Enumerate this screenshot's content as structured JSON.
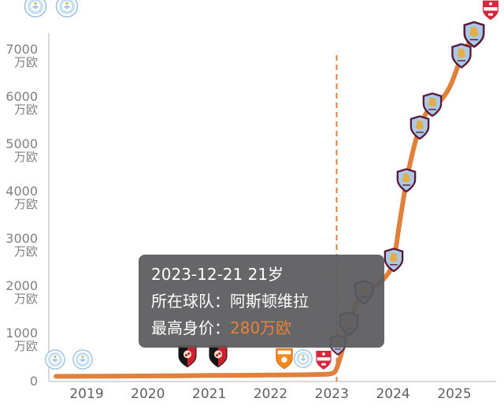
{
  "page": {
    "background": "#ffffff"
  },
  "colors": {
    "line_orange": "#e0803a",
    "dashed_orange": "#e0803a",
    "tooltip_bg": "#5a5a5c",
    "tooltip_value_orange": "#e8823c",
    "axis_gray": "#d9d9d9",
    "label_gray": "#808080"
  },
  "tooltip": {
    "date_age": "2023-12-21 21岁",
    "team_label": "所在球队：",
    "team_value": "阿斯顿维拉",
    "value_label": "最高身价：",
    "value_value": "280万欧"
  },
  "chart_data": {
    "type": "line",
    "title": "",
    "unit": "万欧",
    "x_range": [
      2018.4,
      2025.65
    ],
    "ylim": [
      0,
      7400
    ],
    "grid": false,
    "legend": false,
    "dashed_line_x": 2023.08,
    "x_axis": {
      "ticks": [
        {
          "label": "2019",
          "value": 2019
        },
        {
          "label": "2020",
          "value": 2020
        },
        {
          "label": "2021",
          "value": 2021
        },
        {
          "label": "2022",
          "value": 2022
        },
        {
          "label": "2023",
          "value": 2023
        },
        {
          "label": "2024",
          "value": 2024
        },
        {
          "label": "2025",
          "value": 2025
        }
      ]
    },
    "y_axis": {
      "ticks": [
        {
          "label": "7000",
          "unit": "万欧",
          "value": 7000
        },
        {
          "label": "6000",
          "unit": "万欧",
          "value": 6000
        },
        {
          "label": "5000",
          "unit": "万欧",
          "value": 5000
        },
        {
          "label": "4000",
          "unit": "万欧",
          "value": 4000
        },
        {
          "label": "3000",
          "unit": "万欧",
          "value": 3000
        },
        {
          "label": "2000",
          "unit": "万欧",
          "value": 2000
        },
        {
          "label": "1000",
          "unit": "万欧",
          "value": 1000
        },
        {
          "label": "0",
          "unit": "",
          "value": 0
        }
      ]
    },
    "series": [
      {
        "name": "market-value",
        "color": "#e0803a",
        "points": [
          [
            2018.5,
            110
          ],
          [
            2019.0,
            112
          ],
          [
            2019.5,
            115
          ],
          [
            2020.0,
            118
          ],
          [
            2020.5,
            122
          ],
          [
            2021.0,
            128
          ],
          [
            2021.5,
            132
          ],
          [
            2022.0,
            138
          ],
          [
            2022.4,
            142
          ],
          [
            2022.8,
            150
          ],
          [
            2023.0,
            170
          ],
          [
            2023.08,
            280
          ],
          [
            2023.18,
            700
          ],
          [
            2023.28,
            1210
          ],
          [
            2023.4,
            1620
          ],
          [
            2023.52,
            1890
          ],
          [
            2023.7,
            2000
          ],
          [
            2023.9,
            2250
          ],
          [
            2024.01,
            2560
          ],
          [
            2024.1,
            3300
          ],
          [
            2024.22,
            4250
          ],
          [
            2024.33,
            4900
          ],
          [
            2024.43,
            5360
          ],
          [
            2024.55,
            5700
          ],
          [
            2024.64,
            5850
          ],
          [
            2024.8,
            5980
          ],
          [
            2024.95,
            6300
          ],
          [
            2025.12,
            6890
          ],
          [
            2025.22,
            7120
          ],
          [
            2025.32,
            7300
          ]
        ]
      }
    ],
    "badges": [
      {
        "club": "man-city",
        "year": 2018.16,
        "value": 7930,
        "size": 30
      },
      {
        "club": "man-city",
        "year": 2018.68,
        "value": 7930,
        "size": 30
      },
      {
        "club": "middlesbrough",
        "year": 2025.59,
        "value": 7850,
        "size": 26
      },
      {
        "club": "man-city",
        "year": 2018.49,
        "value": 470,
        "size": 27
      },
      {
        "club": "man-city",
        "year": 2018.94,
        "value": 470,
        "size": 27
      },
      {
        "club": "bournemouth",
        "year": 2020.64,
        "value": 530,
        "size": 27
      },
      {
        "club": "bournemouth",
        "year": 2021.15,
        "value": 530,
        "size": 27
      },
      {
        "club": "blackpool",
        "year": 2022.23,
        "value": 480,
        "size": 25
      },
      {
        "club": "man-city",
        "year": 2022.53,
        "value": 480,
        "size": 25
      },
      {
        "club": "middlesbrough",
        "year": 2022.87,
        "value": 450,
        "size": 25
      },
      {
        "club": "aston-villa",
        "year": 2023.1,
        "value": 770,
        "size": 22
      },
      {
        "club": "aston-villa",
        "year": 2023.28,
        "value": 1210,
        "size": 26
      },
      {
        "club": "aston-villa",
        "year": 2023.52,
        "value": 1890,
        "size": 26
      },
      {
        "club": "aston-villa",
        "year": 2024.01,
        "value": 2560,
        "size": 26
      },
      {
        "club": "aston-villa",
        "year": 2024.22,
        "value": 4250,
        "size": 26
      },
      {
        "club": "aston-villa",
        "year": 2024.43,
        "value": 5360,
        "size": 26
      },
      {
        "club": "aston-villa",
        "year": 2024.64,
        "value": 5850,
        "size": 26
      },
      {
        "club": "aston-villa",
        "year": 2025.12,
        "value": 6890,
        "size": 27
      },
      {
        "club": "aston-villa",
        "year": 2025.32,
        "value": 7330,
        "size": 28
      }
    ]
  }
}
